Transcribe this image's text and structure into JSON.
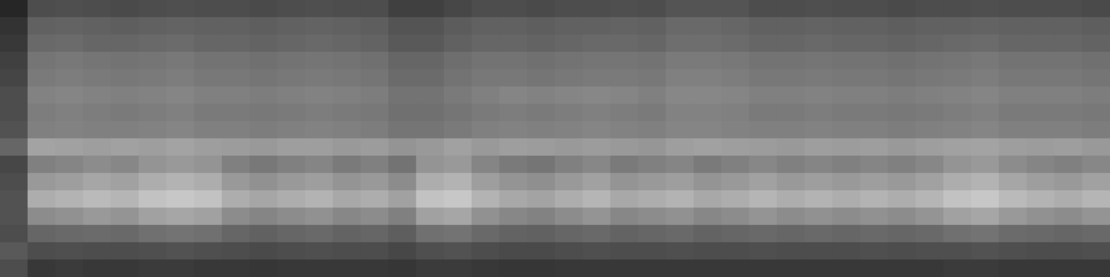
{
  "chart_data": {
    "type": "heatmap",
    "tick_labels": false,
    "zlim": [
      0,
      1
    ],
    "cells": [
      [
        0.15,
        0.3,
        0.31,
        0.3,
        0.29,
        0.3,
        0.31,
        0.3,
        0.3,
        0.29,
        0.3,
        0.31,
        0.3,
        0.3,
        0.25,
        0.25,
        0.28,
        0.3,
        0.3,
        0.29,
        0.3,
        0.3,
        0.31,
        0.3,
        0.33,
        0.33,
        0.33,
        0.3,
        0.3,
        0.31,
        0.3,
        0.3,
        0.29,
        0.3,
        0.3,
        0.31,
        0.3,
        0.3,
        0.3,
        0.29
      ],
      [
        0.2,
        0.38,
        0.39,
        0.38,
        0.37,
        0.38,
        0.39,
        0.38,
        0.38,
        0.37,
        0.38,
        0.39,
        0.38,
        0.37,
        0.33,
        0.33,
        0.36,
        0.38,
        0.38,
        0.37,
        0.38,
        0.38,
        0.39,
        0.38,
        0.41,
        0.41,
        0.4,
        0.38,
        0.38,
        0.39,
        0.38,
        0.38,
        0.37,
        0.38,
        0.38,
        0.39,
        0.38,
        0.38,
        0.38,
        0.37
      ],
      [
        0.22,
        0.41,
        0.42,
        0.4,
        0.4,
        0.41,
        0.42,
        0.4,
        0.4,
        0.39,
        0.4,
        0.41,
        0.4,
        0.39,
        0.35,
        0.35,
        0.38,
        0.4,
        0.4,
        0.39,
        0.4,
        0.41,
        0.41,
        0.4,
        0.43,
        0.43,
        0.42,
        0.4,
        0.4,
        0.41,
        0.4,
        0.4,
        0.39,
        0.4,
        0.41,
        0.42,
        0.4,
        0.4,
        0.4,
        0.39
      ],
      [
        0.25,
        0.46,
        0.47,
        0.46,
        0.45,
        0.46,
        0.47,
        0.45,
        0.45,
        0.44,
        0.45,
        0.46,
        0.45,
        0.44,
        0.4,
        0.4,
        0.43,
        0.45,
        0.45,
        0.44,
        0.45,
        0.46,
        0.46,
        0.45,
        0.48,
        0.48,
        0.47,
        0.45,
        0.45,
        0.46,
        0.45,
        0.45,
        0.44,
        0.45,
        0.46,
        0.47,
        0.45,
        0.45,
        0.45,
        0.44
      ],
      [
        0.27,
        0.48,
        0.49,
        0.48,
        0.47,
        0.48,
        0.49,
        0.47,
        0.47,
        0.46,
        0.47,
        0.48,
        0.47,
        0.46,
        0.42,
        0.42,
        0.45,
        0.47,
        0.47,
        0.46,
        0.47,
        0.48,
        0.48,
        0.47,
        0.5,
        0.5,
        0.49,
        0.47,
        0.47,
        0.48,
        0.47,
        0.47,
        0.46,
        0.47,
        0.48,
        0.49,
        0.47,
        0.47,
        0.47,
        0.46
      ],
      [
        0.3,
        0.51,
        0.52,
        0.51,
        0.5,
        0.51,
        0.52,
        0.5,
        0.5,
        0.49,
        0.5,
        0.51,
        0.5,
        0.49,
        0.45,
        0.45,
        0.48,
        0.5,
        0.52,
        0.51,
        0.52,
        0.53,
        0.52,
        0.5,
        0.53,
        0.53,
        0.52,
        0.5,
        0.5,
        0.51,
        0.5,
        0.5,
        0.49,
        0.5,
        0.51,
        0.52,
        0.5,
        0.5,
        0.5,
        0.49
      ],
      [
        0.3,
        0.49,
        0.5,
        0.49,
        0.48,
        0.49,
        0.5,
        0.48,
        0.48,
        0.47,
        0.48,
        0.49,
        0.48,
        0.47,
        0.44,
        0.44,
        0.46,
        0.48,
        0.49,
        0.48,
        0.49,
        0.5,
        0.49,
        0.48,
        0.51,
        0.51,
        0.5,
        0.48,
        0.48,
        0.49,
        0.48,
        0.48,
        0.47,
        0.48,
        0.49,
        0.5,
        0.48,
        0.48,
        0.48,
        0.47
      ],
      [
        0.32,
        0.5,
        0.51,
        0.5,
        0.5,
        0.51,
        0.52,
        0.5,
        0.5,
        0.49,
        0.5,
        0.51,
        0.5,
        0.49,
        0.46,
        0.46,
        0.48,
        0.5,
        0.51,
        0.5,
        0.51,
        0.52,
        0.51,
        0.5,
        0.52,
        0.52,
        0.51,
        0.5,
        0.5,
        0.51,
        0.5,
        0.5,
        0.49,
        0.5,
        0.51,
        0.52,
        0.5,
        0.5,
        0.5,
        0.49
      ],
      [
        0.4,
        0.64,
        0.63,
        0.62,
        0.63,
        0.62,
        0.64,
        0.62,
        0.61,
        0.6,
        0.62,
        0.62,
        0.6,
        0.61,
        0.58,
        0.6,
        0.63,
        0.6,
        0.62,
        0.61,
        0.6,
        0.61,
        0.6,
        0.59,
        0.62,
        0.63,
        0.62,
        0.61,
        0.6,
        0.62,
        0.61,
        0.62,
        0.6,
        0.62,
        0.63,
        0.64,
        0.62,
        0.61,
        0.62,
        0.6
      ],
      [
        0.28,
        0.5,
        0.52,
        0.55,
        0.53,
        0.58,
        0.6,
        0.58,
        0.5,
        0.47,
        0.5,
        0.52,
        0.48,
        0.5,
        0.45,
        0.58,
        0.6,
        0.52,
        0.48,
        0.46,
        0.5,
        0.53,
        0.48,
        0.5,
        0.52,
        0.48,
        0.5,
        0.53,
        0.5,
        0.52,
        0.5,
        0.52,
        0.5,
        0.53,
        0.58,
        0.6,
        0.55,
        0.52,
        0.5,
        0.53
      ],
      [
        0.3,
        0.6,
        0.62,
        0.65,
        0.63,
        0.68,
        0.7,
        0.68,
        0.6,
        0.57,
        0.6,
        0.62,
        0.58,
        0.6,
        0.55,
        0.68,
        0.7,
        0.62,
        0.58,
        0.56,
        0.6,
        0.63,
        0.58,
        0.6,
        0.62,
        0.58,
        0.6,
        0.63,
        0.6,
        0.62,
        0.6,
        0.62,
        0.6,
        0.63,
        0.68,
        0.7,
        0.65,
        0.62,
        0.6,
        0.63
      ],
      [
        0.32,
        0.68,
        0.7,
        0.73,
        0.71,
        0.76,
        0.78,
        0.76,
        0.68,
        0.65,
        0.68,
        0.7,
        0.66,
        0.68,
        0.63,
        0.76,
        0.78,
        0.7,
        0.66,
        0.64,
        0.68,
        0.71,
        0.66,
        0.68,
        0.7,
        0.66,
        0.68,
        0.71,
        0.68,
        0.7,
        0.68,
        0.7,
        0.68,
        0.71,
        0.76,
        0.78,
        0.73,
        0.7,
        0.68,
        0.71
      ],
      [
        0.32,
        0.55,
        0.57,
        0.6,
        0.58,
        0.63,
        0.65,
        0.63,
        0.55,
        0.52,
        0.55,
        0.57,
        0.53,
        0.55,
        0.5,
        0.63,
        0.65,
        0.57,
        0.53,
        0.51,
        0.55,
        0.58,
        0.53,
        0.55,
        0.57,
        0.53,
        0.55,
        0.58,
        0.55,
        0.57,
        0.55,
        0.57,
        0.55,
        0.58,
        0.63,
        0.65,
        0.6,
        0.57,
        0.55,
        0.58
      ],
      [
        0.3,
        0.4,
        0.41,
        0.42,
        0.41,
        0.44,
        0.45,
        0.44,
        0.4,
        0.38,
        0.4,
        0.41,
        0.39,
        0.4,
        0.37,
        0.44,
        0.45,
        0.41,
        0.39,
        0.38,
        0.4,
        0.41,
        0.39,
        0.4,
        0.41,
        0.39,
        0.4,
        0.41,
        0.4,
        0.41,
        0.4,
        0.41,
        0.4,
        0.41,
        0.44,
        0.45,
        0.42,
        0.41,
        0.4,
        0.41
      ],
      [
        0.35,
        0.3,
        0.31,
        0.3,
        0.3,
        0.31,
        0.32,
        0.31,
        0.3,
        0.29,
        0.3,
        0.31,
        0.3,
        0.3,
        0.28,
        0.31,
        0.32,
        0.3,
        0.29,
        0.29,
        0.3,
        0.31,
        0.3,
        0.3,
        0.31,
        0.3,
        0.3,
        0.31,
        0.3,
        0.3,
        0.3,
        0.31,
        0.3,
        0.31,
        0.31,
        0.32,
        0.31,
        0.3,
        0.3,
        0.31
      ],
      [
        0.3,
        0.22,
        0.23,
        0.22,
        0.22,
        0.23,
        0.23,
        0.22,
        0.22,
        0.21,
        0.22,
        0.22,
        0.22,
        0.22,
        0.21,
        0.23,
        0.23,
        0.22,
        0.21,
        0.21,
        0.22,
        0.22,
        0.22,
        0.22,
        0.22,
        0.22,
        0.22,
        0.22,
        0.22,
        0.22,
        0.22,
        0.22,
        0.22,
        0.22,
        0.23,
        0.23,
        0.22,
        0.22,
        0.22,
        0.22
      ]
    ]
  }
}
